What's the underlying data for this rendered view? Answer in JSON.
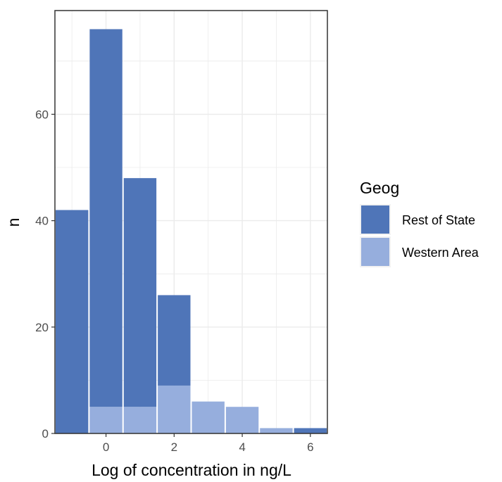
{
  "chart_data": {
    "type": "bar",
    "stacked": true,
    "bins": [
      {
        "x": -1,
        "rest_of_state": 42,
        "western_area": 0
      },
      {
        "x": 0,
        "rest_of_state": 71,
        "western_area": 5
      },
      {
        "x": 1,
        "rest_of_state": 43,
        "western_area": 5
      },
      {
        "x": 2,
        "rest_of_state": 17,
        "western_area": 9
      },
      {
        "x": 3,
        "rest_of_state": 0,
        "western_area": 6
      },
      {
        "x": 4,
        "rest_of_state": 0,
        "western_area": 5
      },
      {
        "x": 5,
        "rest_of_state": 0,
        "western_area": 1
      },
      {
        "x": 6,
        "rest_of_state": 1,
        "western_area": 0
      }
    ],
    "series": [
      {
        "name": "Rest of State",
        "key": "rest_of_state",
        "color": "#4f75b8"
      },
      {
        "name": "Western Area",
        "key": "western_area",
        "color": "#96aedd"
      }
    ],
    "xlabel": "Log of concentration in ng/L",
    "ylabel": "n",
    "xticks": [
      "0",
      "2",
      "4",
      "6"
    ],
    "xtick_values": [
      0,
      2,
      4,
      6
    ],
    "yticks": [
      "0",
      "20",
      "40",
      "60"
    ],
    "ytick_values": [
      0,
      20,
      40,
      60
    ],
    "xlim": [
      -1.5,
      6.5
    ],
    "ylim": [
      0,
      79.5
    ],
    "legend_title": "Geog",
    "legend_position": "right",
    "grid": true,
    "panel_border_color": "#333333",
    "grid_color": "#ebebeb"
  }
}
